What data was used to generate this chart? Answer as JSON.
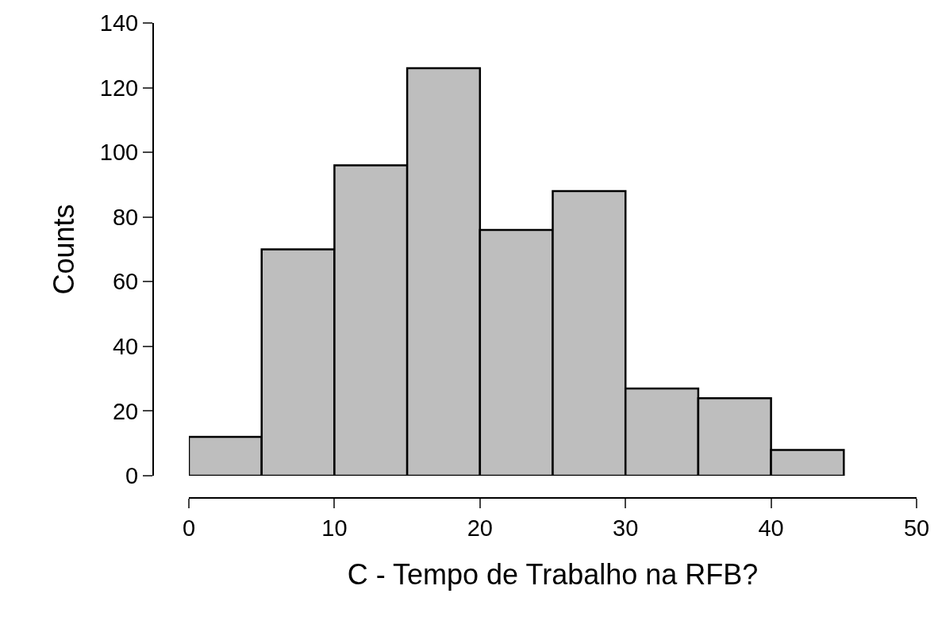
{
  "chart_data": {
    "type": "histogram",
    "xlabel": "C - Tempo de Trabalho na RFB?",
    "ylabel": "Counts",
    "bins": [
      0,
      5,
      10,
      15,
      20,
      25,
      30,
      35,
      40,
      45
    ],
    "values": [
      12,
      70,
      96,
      126,
      76,
      88,
      27,
      24,
      8
    ],
    "color": "#bebebe",
    "xlim": [
      0,
      50
    ],
    "xticks": [
      0,
      10,
      20,
      30,
      40,
      50
    ],
    "ylim": [
      0,
      140
    ],
    "yticks": [
      0,
      20,
      40,
      60,
      80,
      100,
      120,
      140
    ]
  }
}
